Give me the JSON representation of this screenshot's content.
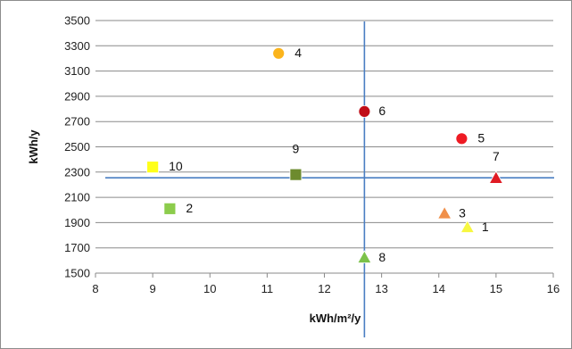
{
  "chart_data": {
    "type": "scatter",
    "xlabel": "kWh/m²/y",
    "ylabel": "kWh/y",
    "xlim": [
      8,
      16
    ],
    "ylim": [
      1500,
      3500
    ],
    "x_ticks": [
      "8",
      "9",
      "10",
      "11",
      "12",
      "13",
      "14",
      "15",
      "16"
    ],
    "y_ticks": [
      "1500",
      "1700",
      "1900",
      "2100",
      "2300",
      "2500",
      "2700",
      "2900",
      "3100",
      "3300",
      "3500"
    ],
    "grid": "horizontal",
    "legend": "none",
    "points": [
      {
        "label": "1",
        "x": 14.5,
        "y": 1860,
        "shape": "triangle",
        "color": "#f7f740"
      },
      {
        "label": "2",
        "x": 9.3,
        "y": 2010,
        "shape": "square",
        "color": "#8ccc4c"
      },
      {
        "label": "3",
        "x": 14.1,
        "y": 1970,
        "shape": "triangle",
        "color": "#f0904a"
      },
      {
        "label": "4",
        "x": 11.2,
        "y": 3240,
        "shape": "circle",
        "color": "#fbb41c"
      },
      {
        "label": "5",
        "x": 14.4,
        "y": 2565,
        "shape": "circle",
        "color": "#ee1b24"
      },
      {
        "label": "6",
        "x": 12.7,
        "y": 2780,
        "shape": "circle",
        "color": "#c00e19"
      },
      {
        "label": "7",
        "x": 15.0,
        "y": 2250,
        "shape": "triangle",
        "color": "#e01b24"
      },
      {
        "label": "8",
        "x": 12.7,
        "y": 1620,
        "shape": "triangle",
        "color": "#7cc24a"
      },
      {
        "label": "9",
        "x": 11.5,
        "y": 2280,
        "shape": "square",
        "color": "#6d8b2e"
      },
      {
        "label": "10",
        "x": 9.0,
        "y": 2340,
        "shape": "square",
        "color": "#ffff1a"
      }
    ],
    "reference_lines": {
      "x": 12.7,
      "y": 2255,
      "color": "#4a7ec2"
    }
  }
}
